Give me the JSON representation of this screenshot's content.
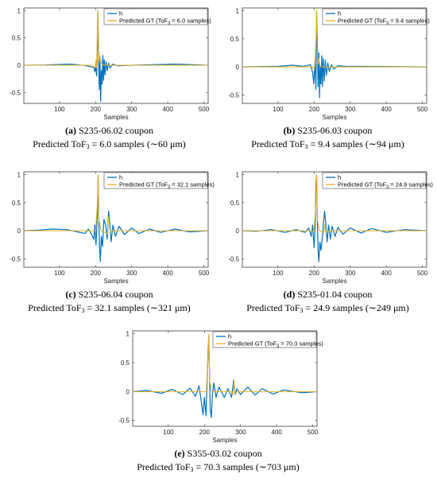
{
  "colors": {
    "h": "#0072BD",
    "gt": "#EDB120"
  },
  "chart_data": [
    {
      "id": "a",
      "type": "line",
      "xlabel": "Samples",
      "xlim": [
        1,
        512
      ],
      "ylim": [
        -0.7,
        1.05
      ],
      "xticks": [
        100,
        200,
        300,
        400,
        500
      ],
      "yticks": [
        -0.5,
        0,
        0.5,
        1
      ],
      "ytick_labels": [
        "-0.5",
        "0",
        "0.5",
        "1"
      ],
      "legend": {
        "h": "h",
        "gt_prefix": "Predicted GT (ToF",
        "gt_sub": "3",
        "gt_value": " = 6.0 samples)"
      },
      "peak": 206,
      "tof": 6.0,
      "h_points": [
        [
          1,
          0
        ],
        [
          60,
          0.005
        ],
        [
          130,
          0.02
        ],
        [
          170,
          -0.005
        ],
        [
          195,
          -0.04
        ],
        [
          198,
          -0.12
        ],
        [
          200,
          -0.02
        ],
        [
          203,
          -0.2
        ],
        [
          205,
          0.35
        ],
        [
          206,
          1.0
        ],
        [
          208,
          0.3
        ],
        [
          210,
          -0.45
        ],
        [
          212,
          0.15
        ],
        [
          214,
          -0.66
        ],
        [
          216,
          -0.1
        ],
        [
          218,
          -0.35
        ],
        [
          220,
          0.18
        ],
        [
          222,
          -0.28
        ],
        [
          224,
          0.1
        ],
        [
          226,
          -0.18
        ],
        [
          229,
          0.07
        ],
        [
          232,
          -0.1
        ],
        [
          236,
          0.04
        ],
        [
          240,
          -0.05
        ],
        [
          248,
          0.02
        ],
        [
          260,
          -0.01
        ],
        [
          300,
          0.0
        ],
        [
          420,
          0.02
        ],
        [
          512,
          0.0
        ]
      ],
      "gt_points": [
        [
          1,
          0
        ],
        [
          190,
          0
        ],
        [
          199,
          -0.05
        ],
        [
          201,
          0.1
        ],
        [
          203,
          -0.05
        ],
        [
          204,
          0.4
        ],
        [
          206,
          1.0
        ],
        [
          208,
          0.1
        ],
        [
          210,
          0.22
        ],
        [
          212,
          0.06
        ],
        [
          214,
          0.1
        ],
        [
          218,
          0.02
        ],
        [
          224,
          0
        ],
        [
          512,
          0
        ]
      ],
      "caption": {
        "letter": "(a)",
        "name": " S235-06.02 coupon",
        "line2_prefix": "Predicted ToF",
        "line2_sub": "3",
        "line2_value": " = 6.0 samples (∼60 μm)"
      }
    },
    {
      "id": "b",
      "type": "line",
      "xlabel": "Samples",
      "xlim": [
        1,
        512
      ],
      "ylim": [
        -0.65,
        1.05
      ],
      "xticks": [
        100,
        200,
        300,
        400,
        500
      ],
      "yticks": [
        -0.5,
        0,
        0.5,
        1
      ],
      "ytick_labels": [
        "-0.5",
        "0",
        "0.5",
        "1"
      ],
      "legend": {
        "h": "h",
        "gt_prefix": "Predicted GT (ToF",
        "gt_sub": "3",
        "gt_value": " = 9.4 samples)"
      },
      "peak": 207,
      "tof": 9.4,
      "h_points": [
        [
          1,
          0
        ],
        [
          100,
          0.01
        ],
        [
          140,
          0.03
        ],
        [
          170,
          0.01
        ],
        [
          190,
          0.04
        ],
        [
          196,
          -0.1
        ],
        [
          199,
          -0.3
        ],
        [
          202,
          0.1
        ],
        [
          205,
          -0.4
        ],
        [
          207,
          1.0
        ],
        [
          209,
          0.45
        ],
        [
          211,
          -0.35
        ],
        [
          213,
          0.25
        ],
        [
          215,
          -0.55
        ],
        [
          217,
          0.0
        ],
        [
          219,
          -0.3
        ],
        [
          221,
          0.2
        ],
        [
          223,
          -0.35
        ],
        [
          225,
          0.15
        ],
        [
          228,
          -0.25
        ],
        [
          231,
          0.12
        ],
        [
          234,
          -0.15
        ],
        [
          238,
          0.07
        ],
        [
          242,
          -0.08
        ],
        [
          248,
          0.04
        ],
        [
          255,
          -0.04
        ],
        [
          265,
          0.02
        ],
        [
          290,
          0.01
        ],
        [
          512,
          0.0
        ]
      ],
      "gt_points": [
        [
          1,
          0
        ],
        [
          196,
          0
        ],
        [
          201,
          -0.05
        ],
        [
          204,
          0.3
        ],
        [
          207,
          1.0
        ],
        [
          209,
          0.1
        ],
        [
          211,
          0.05
        ],
        [
          213,
          0.15
        ],
        [
          216,
          0.02
        ],
        [
          222,
          0
        ],
        [
          512,
          0
        ]
      ],
      "caption": {
        "letter": "(b)",
        "name": " S235-06.03 coupon",
        "line2_prefix": "Predicted ToF",
        "line2_sub": "3",
        "line2_value": " = 9.4 samples (∼94 μm)"
      }
    },
    {
      "id": "c",
      "type": "line",
      "xlabel": "Samples",
      "xlim": [
        1,
        512
      ],
      "ylim": [
        -0.65,
        1.05
      ],
      "xticks": [
        100,
        200,
        300,
        400,
        500
      ],
      "yticks": [
        -0.5,
        0,
        0.5,
        1
      ],
      "ytick_labels": [
        "-0.5",
        "0",
        "0.5",
        "1"
      ],
      "legend": {
        "h": "h",
        "gt_prefix": "Predicted GT (ToF",
        "gt_sub": "3",
        "gt_value": " = 32.1 samples)"
      },
      "peak": 207,
      "tof": 32.1,
      "h_points": [
        [
          1,
          0
        ],
        [
          40,
          0.01
        ],
        [
          80,
          0.03
        ],
        [
          120,
          0.02
        ],
        [
          150,
          -0.02
        ],
        [
          170,
          -0.05
        ],
        [
          180,
          0.03
        ],
        [
          190,
          -0.08
        ],
        [
          195,
          -0.15
        ],
        [
          198,
          0.1
        ],
        [
          201,
          -0.25
        ],
        [
          204,
          0.15
        ],
        [
          206,
          0.7
        ],
        [
          207,
          1.0
        ],
        [
          209,
          0.2
        ],
        [
          211,
          -0.3
        ],
        [
          213,
          -0.55
        ],
        [
          216,
          -0.1
        ],
        [
          219,
          -0.28
        ],
        [
          223,
          0.2
        ],
        [
          228,
          0.1
        ],
        [
          232,
          -0.15
        ],
        [
          236,
          0.35
        ],
        [
          239,
          0.15
        ],
        [
          243,
          -0.2
        ],
        [
          248,
          0.1
        ],
        [
          255,
          -0.1
        ],
        [
          265,
          0.08
        ],
        [
          280,
          -0.07
        ],
        [
          300,
          0.05
        ],
        [
          320,
          -0.05
        ],
        [
          350,
          0.03
        ],
        [
          380,
          -0.03
        ],
        [
          420,
          0.03
        ],
        [
          460,
          -0.02
        ],
        [
          512,
          0.0
        ]
      ],
      "gt_points": [
        [
          1,
          0
        ],
        [
          200,
          0
        ],
        [
          205,
          0.5
        ],
        [
          207,
          1.0
        ],
        [
          209,
          0.2
        ],
        [
          215,
          0
        ],
        [
          232,
          -0.05
        ],
        [
          236,
          0.25
        ],
        [
          240,
          -0.02
        ],
        [
          246,
          0
        ],
        [
          512,
          0
        ]
      ],
      "caption": {
        "letter": "(c)",
        "name": " S235-06.04 coupon",
        "line2_prefix": "Predicted ToF",
        "line2_sub": "3",
        "line2_value": " = 32.1 samples (∼321 μm)"
      }
    },
    {
      "id": "d",
      "type": "line",
      "xlabel": "Samples",
      "xlim": [
        1,
        512
      ],
      "ylim": [
        -0.65,
        1.05
      ],
      "xticks": [
        100,
        200,
        300,
        400,
        500
      ],
      "yticks": [
        -0.5,
        0,
        0.5,
        1
      ],
      "ytick_labels": [
        "-0.5",
        "0",
        "0.5",
        "1"
      ],
      "legend": {
        "h": "h",
        "gt_prefix": "Predicted GT (ToF",
        "gt_sub": "3",
        "gt_value": " = 24.9 samples)"
      },
      "peak": 207,
      "tof": 24.9,
      "h_points": [
        [
          1,
          0
        ],
        [
          40,
          -0.01
        ],
        [
          80,
          0.02
        ],
        [
          120,
          -0.03
        ],
        [
          150,
          0.02
        ],
        [
          175,
          -0.03
        ],
        [
          185,
          0.05
        ],
        [
          192,
          -0.1
        ],
        [
          196,
          0.1
        ],
        [
          200,
          -0.3
        ],
        [
          203,
          0.1
        ],
        [
          205,
          0.8
        ],
        [
          207,
          1.0
        ],
        [
          209,
          0.2
        ],
        [
          211,
          -0.35
        ],
        [
          213,
          -0.55
        ],
        [
          216,
          -0.2
        ],
        [
          219,
          -0.35
        ],
        [
          223,
          -0.1
        ],
        [
          226,
          0.15
        ],
        [
          229,
          0.35
        ],
        [
          232,
          0.15
        ],
        [
          236,
          -0.2
        ],
        [
          240,
          0.1
        ],
        [
          245,
          -0.15
        ],
        [
          250,
          0.08
        ],
        [
          258,
          -0.1
        ],
        [
          266,
          0.06
        ],
        [
          280,
          -0.06
        ],
        [
          300,
          0.05
        ],
        [
          330,
          -0.04
        ],
        [
          360,
          0.04
        ],
        [
          400,
          -0.03
        ],
        [
          450,
          0.02
        ],
        [
          512,
          0.0
        ]
      ],
      "gt_points": [
        [
          1,
          0
        ],
        [
          200,
          0
        ],
        [
          205,
          0.5
        ],
        [
          207,
          1.0
        ],
        [
          209,
          0.2
        ],
        [
          215,
          0
        ],
        [
          227,
          -0.03
        ],
        [
          230,
          0.12
        ],
        [
          233,
          -0.03
        ],
        [
          240,
          0
        ],
        [
          512,
          0
        ]
      ],
      "caption": {
        "letter": "(d)",
        "name": " S235-01.04 coupon",
        "line2_prefix": "Predicted ToF",
        "line2_sub": "3",
        "line2_value": " = 24.9 samples (∼249 μm)"
      }
    },
    {
      "id": "e",
      "type": "line",
      "xlabel": "Samples",
      "xlim": [
        1,
        512
      ],
      "ylim": [
        -0.6,
        1.05
      ],
      "xticks": [
        100,
        200,
        300,
        400,
        500
      ],
      "yticks": [
        -0.5,
        0,
        0.5,
        1
      ],
      "ytick_labels": [
        "-0.5",
        "0",
        "0.5",
        "1"
      ],
      "legend": {
        "h": "h",
        "gt_prefix": "Predicted GT (ToF",
        "gt_sub": "3",
        "gt_value": " = 70.3 samples)"
      },
      "peak": 212,
      "tof": 70.3,
      "h_points": [
        [
          1,
          0
        ],
        [
          40,
          0.02
        ],
        [
          80,
          -0.03
        ],
        [
          110,
          0.04
        ],
        [
          140,
          -0.05
        ],
        [
          160,
          0.06
        ],
        [
          175,
          -0.08
        ],
        [
          185,
          0.1
        ],
        [
          192,
          -0.2
        ],
        [
          196,
          -0.4
        ],
        [
          200,
          -0.1
        ],
        [
          204,
          -0.42
        ],
        [
          207,
          0.1
        ],
        [
          210,
          0.7
        ],
        [
          212,
          0.97
        ],
        [
          214,
          0.3
        ],
        [
          216,
          -0.3
        ],
        [
          219,
          -0.45
        ],
        [
          222,
          -0.05
        ],
        [
          226,
          0.15
        ],
        [
          232,
          -0.1
        ],
        [
          240,
          0.08
        ],
        [
          255,
          -0.1
        ],
        [
          265,
          0.05
        ],
        [
          275,
          -0.1
        ],
        [
          281,
          0.2
        ],
        [
          285,
          -0.05
        ],
        [
          290,
          0.05
        ],
        [
          300,
          -0.05
        ],
        [
          320,
          0.08
        ],
        [
          340,
          -0.06
        ],
        [
          360,
          0.05
        ],
        [
          390,
          -0.04
        ],
        [
          420,
          0.03
        ],
        [
          470,
          -0.02
        ],
        [
          512,
          0.0
        ]
      ],
      "gt_points": [
        [
          1,
          0
        ],
        [
          205,
          0
        ],
        [
          210,
          0.6
        ],
        [
          212,
          1.0
        ],
        [
          214,
          0.2
        ],
        [
          220,
          0
        ],
        [
          276,
          0
        ],
        [
          279,
          -0.05
        ],
        [
          282,
          0.2
        ],
        [
          285,
          -0.03
        ],
        [
          292,
          0
        ],
        [
          512,
          0
        ]
      ],
      "caption": {
        "letter": "(e)",
        "name": " S355-03.02 coupon",
        "line2_prefix": "Predicted ToF",
        "line2_sub": "3",
        "line2_value": " = 70.3 samples (∼703 μm)"
      }
    }
  ]
}
